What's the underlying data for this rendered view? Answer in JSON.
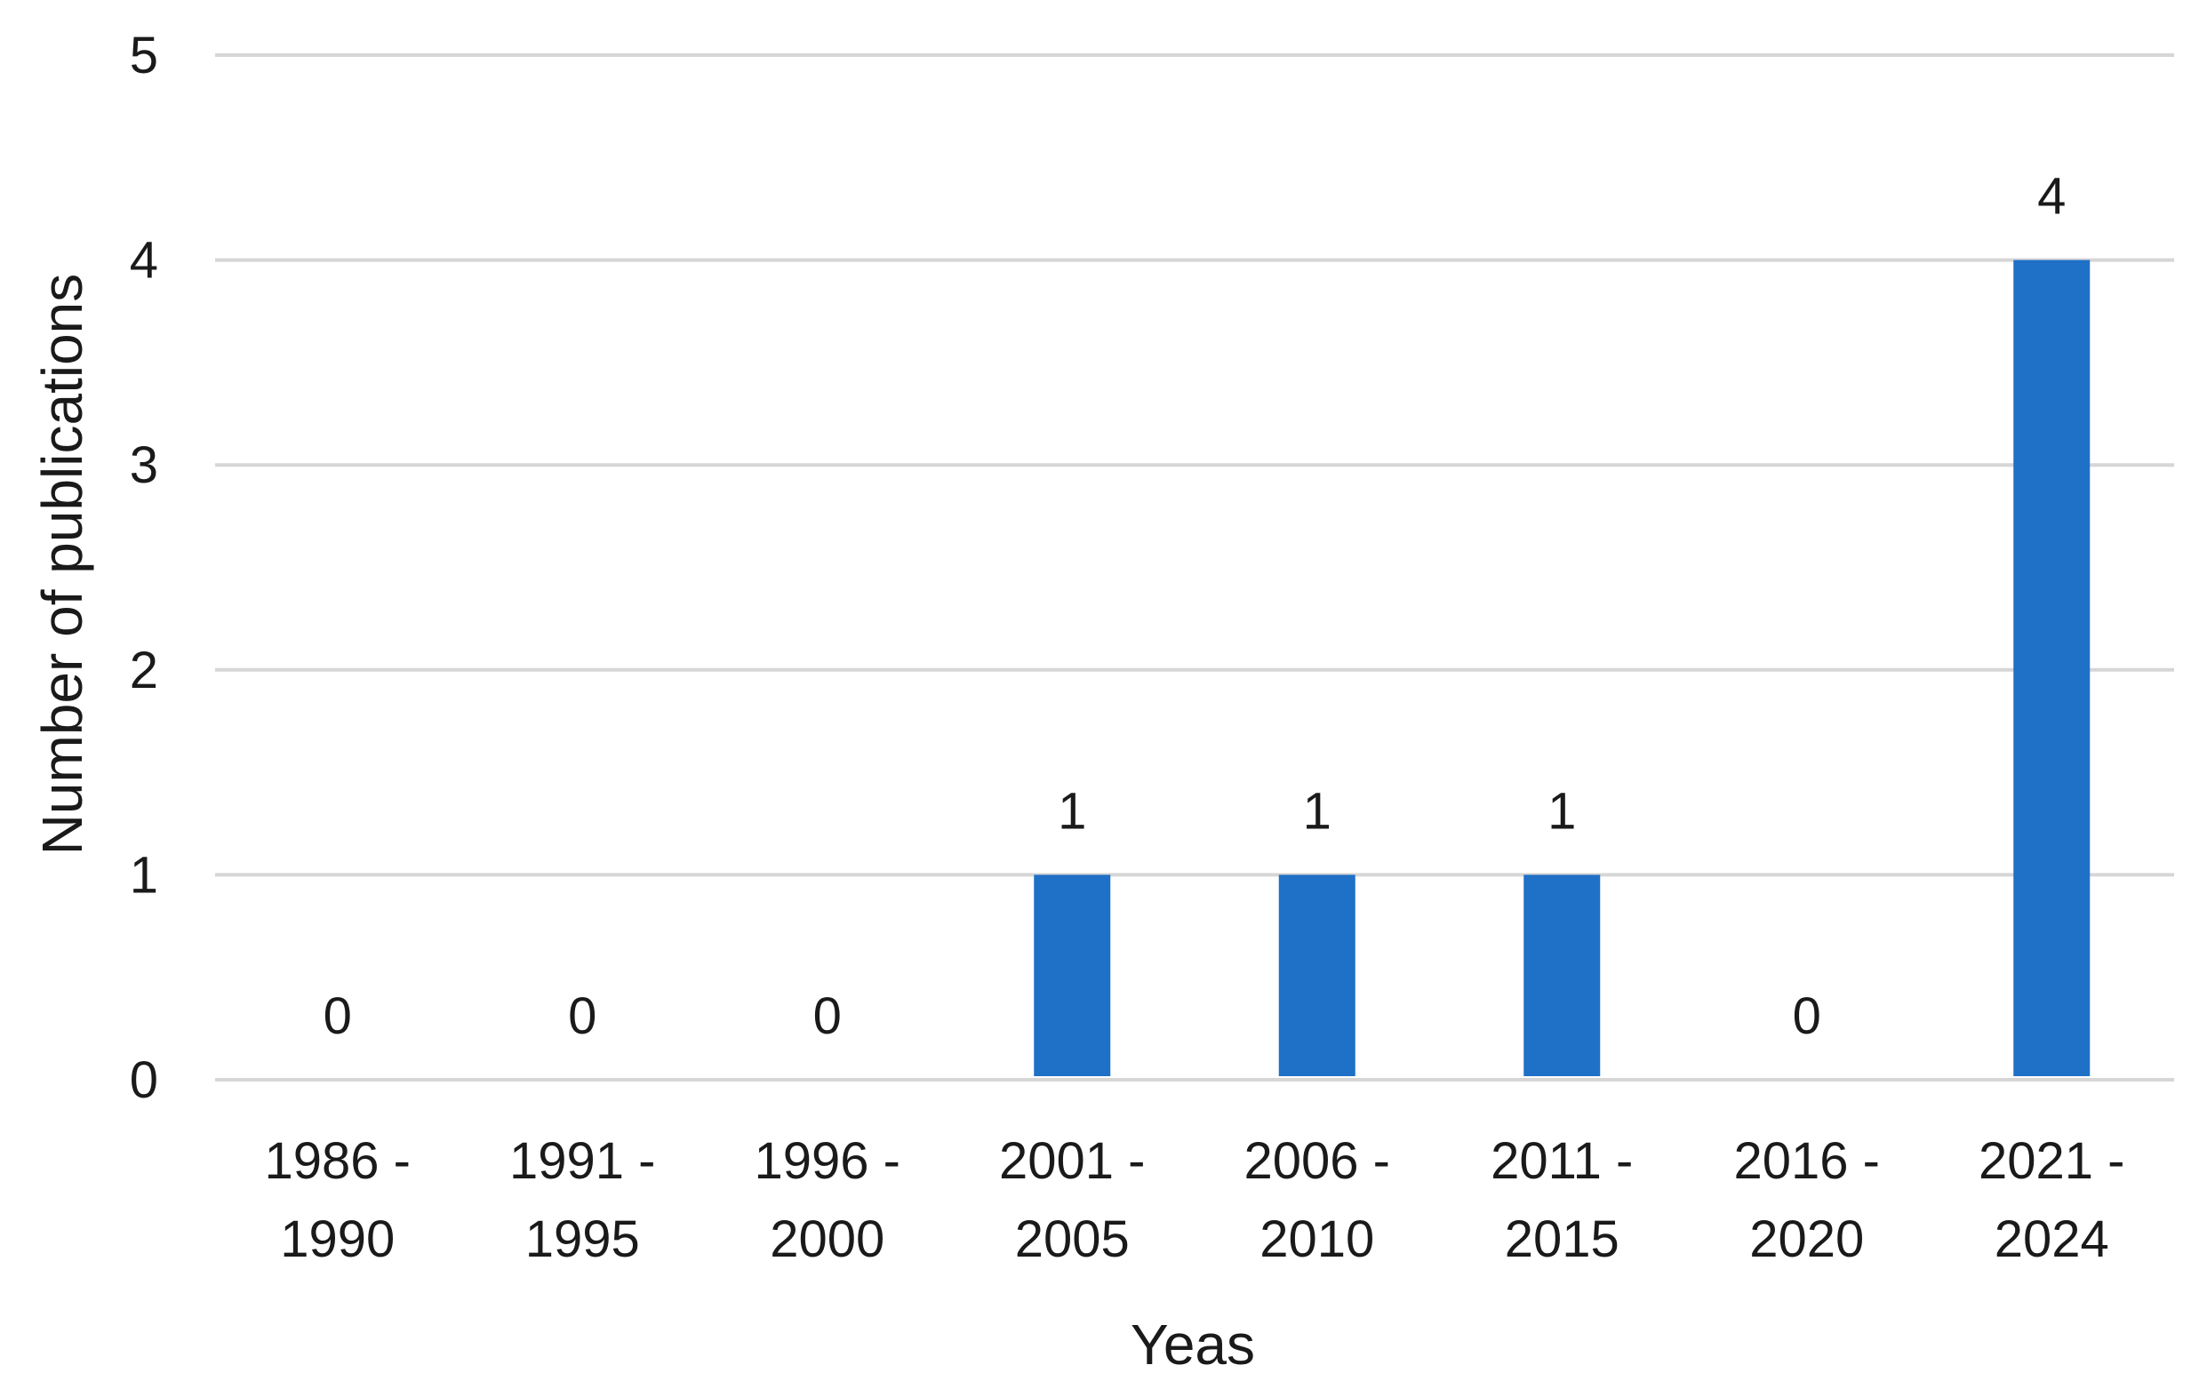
{
  "chart_data": {
    "type": "bar",
    "title": "",
    "xlabel": "Yeas",
    "ylabel": "Number of publications",
    "categories": [
      [
        "1986 -",
        "1990"
      ],
      [
        "1991 -",
        "1995"
      ],
      [
        "1996 -",
        "2000"
      ],
      [
        "2001 -",
        "2005"
      ],
      [
        "2006 -",
        "2010"
      ],
      [
        "2011 -",
        "2015"
      ],
      [
        "2016 -",
        "2020"
      ],
      [
        "2021 -",
        "2024"
      ]
    ],
    "values": [
      0,
      0,
      0,
      1,
      1,
      1,
      0,
      4
    ],
    "ylim": [
      0,
      5
    ],
    "yticks": [
      0,
      1,
      2,
      3,
      4,
      5
    ],
    "grid": true,
    "data_labels": true,
    "legend": "none",
    "colors": {
      "bar": "#1f70c7",
      "grid": "#d6d6d6",
      "text": "#1a1a1a"
    }
  }
}
